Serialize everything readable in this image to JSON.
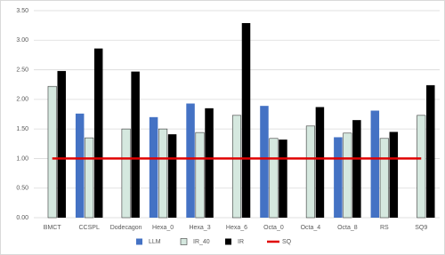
{
  "chart_data": {
    "type": "bar",
    "categories": [
      "BMCT",
      "CCSPL",
      "Dodecagon",
      "Hexa_0",
      "Hexa_3",
      "Hexa_6",
      "Octa_0",
      "Octa_4",
      "Octa_8",
      "RS",
      "SQ9"
    ],
    "series": [
      {
        "name": "LLM",
        "color": "#4472c4",
        "values": [
          null,
          1.76,
          null,
          1.7,
          1.93,
          null,
          1.89,
          null,
          1.36,
          1.81,
          null
        ]
      },
      {
        "name": "IR_40",
        "color": "#d5e8df",
        "values": [
          2.22,
          1.35,
          1.5,
          1.5,
          1.44,
          1.73,
          1.34,
          1.55,
          1.43,
          1.34,
          1.73
        ]
      },
      {
        "name": "IR",
        "color": "#000000",
        "values": [
          2.48,
          2.86,
          2.47,
          1.41,
          1.85,
          3.29,
          1.32,
          1.87,
          1.65,
          1.45,
          2.24
        ]
      },
      {
        "name": "SQ",
        "type": "line",
        "color": "#e00000",
        "values": [
          1.0,
          1.0,
          1.0,
          1.0,
          1.0,
          1.0,
          1.0,
          1.0,
          1.0,
          1.0,
          1.0
        ]
      }
    ],
    "ylim": [
      0,
      3.5
    ],
    "yticks": [
      {
        "value": 0,
        "label": "0.00"
      },
      {
        "value": 0.5,
        "label": "0.50"
      },
      {
        "value": 1,
        "label": "1.00"
      },
      {
        "value": 1.5,
        "label": "1.50"
      },
      {
        "value": 2,
        "label": "2.00"
      },
      {
        "value": 2.5,
        "label": "2.50"
      },
      {
        "value": 3,
        "label": "3.00"
      },
      {
        "value": 3.5,
        "label": "3.50"
      }
    ],
    "grid": true,
    "legend": "bottom"
  }
}
